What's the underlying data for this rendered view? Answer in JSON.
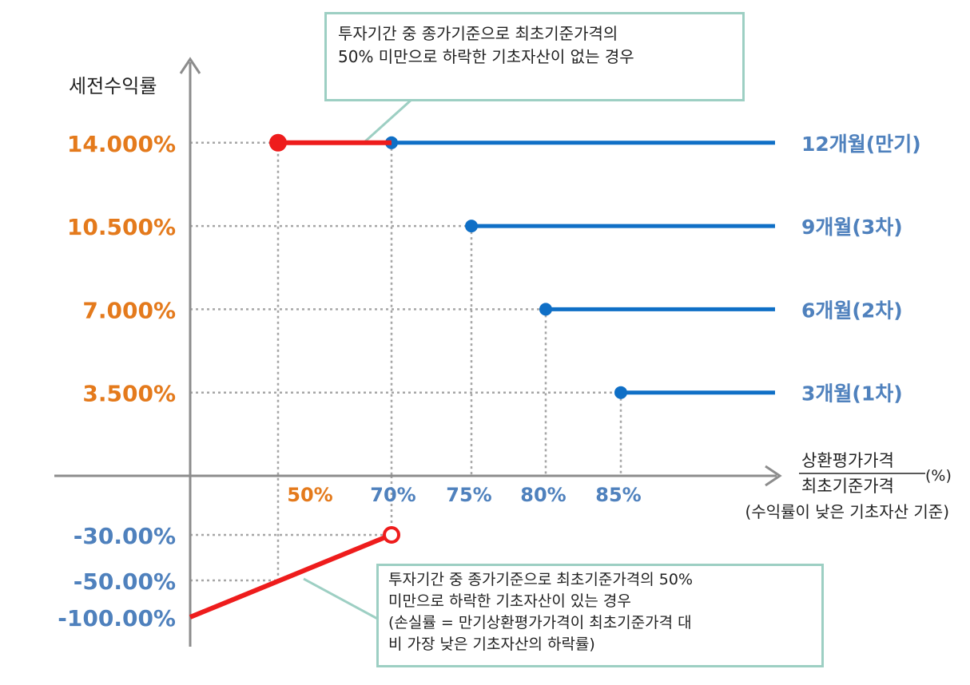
{
  "chart_data": {
    "type": "line",
    "ylabel": "세전수익률",
    "xlabel": {
      "numerator": "상환평가가격",
      "denominator": "최초기준가격",
      "unit": "(%)",
      "note": "(수익률이 낮은 기초자산 기준)"
    },
    "y_ticks": [
      {
        "label": "14.000%",
        "value": 14.0,
        "color": "#e47a1c"
      },
      {
        "label": "10.500%",
        "value": 10.5,
        "color": "#e47a1c"
      },
      {
        "label": "7.000%",
        "value": 7.0,
        "color": "#e47a1c"
      },
      {
        "label": "3.500%",
        "value": 3.5,
        "color": "#e47a1c"
      },
      {
        "label": "-30.00%",
        "value": -30.0,
        "color": "#4f81bd"
      },
      {
        "label": "-50.00%",
        "value": -50.0,
        "color": "#4f81bd"
      },
      {
        "label": "-100.00%",
        "value": -100.0,
        "color": "#4f81bd"
      }
    ],
    "x_ticks": [
      {
        "label": "50%",
        "value": 50,
        "color": "#e47a1c"
      },
      {
        "label": "70%",
        "value": 70,
        "color": "#4f81bd"
      },
      {
        "label": "75%",
        "value": 75,
        "color": "#4f81bd"
      },
      {
        "label": "80%",
        "value": 80,
        "color": "#4f81bd"
      },
      {
        "label": "85%",
        "value": 85,
        "color": "#4f81bd"
      }
    ],
    "series": [
      {
        "name": "12개월(만기)",
        "start_x": 70,
        "y": 14.0,
        "color": "#0f6fc6"
      },
      {
        "name": "9개월(3차)",
        "start_x": 75,
        "y": 10.5,
        "color": "#0f6fc6"
      },
      {
        "name": "6개월(2차)",
        "start_x": 80,
        "y": 7.0,
        "color": "#0f6fc6"
      },
      {
        "name": "3개월(1차)",
        "start_x": 85,
        "y": 3.5,
        "color": "#0f6fc6"
      }
    ],
    "no_knock_in_segment": {
      "x": [
        50,
        70
      ],
      "y": 14.0,
      "color": "#ee1c1c"
    },
    "loss_line": {
      "x": [
        0,
        70
      ],
      "y": [
        -100,
        -30
      ],
      "color": "#ee1c1c"
    },
    "colors": {
      "axis": "#8c8c8c",
      "grid": "#a6a6a6",
      "callout_border": "#9dcfc3"
    }
  },
  "callouts": {
    "top": {
      "line1": "투자기간 중 종가기준으로 최초기준가격의",
      "line2": "50% 미만으로 하락한 기초자산이 없는 경우"
    },
    "bottom": {
      "line1": "투자기간 중 종가기준으로 최초기준가격의 50%",
      "line2": "미만으로 하락한 기초자산이 있는 경우",
      "line3": "(손실률 = 만기상환평가가격이 최초기준가격 대",
      "line4": "비 가장 낮은 기초자산의 하락률)"
    }
  }
}
